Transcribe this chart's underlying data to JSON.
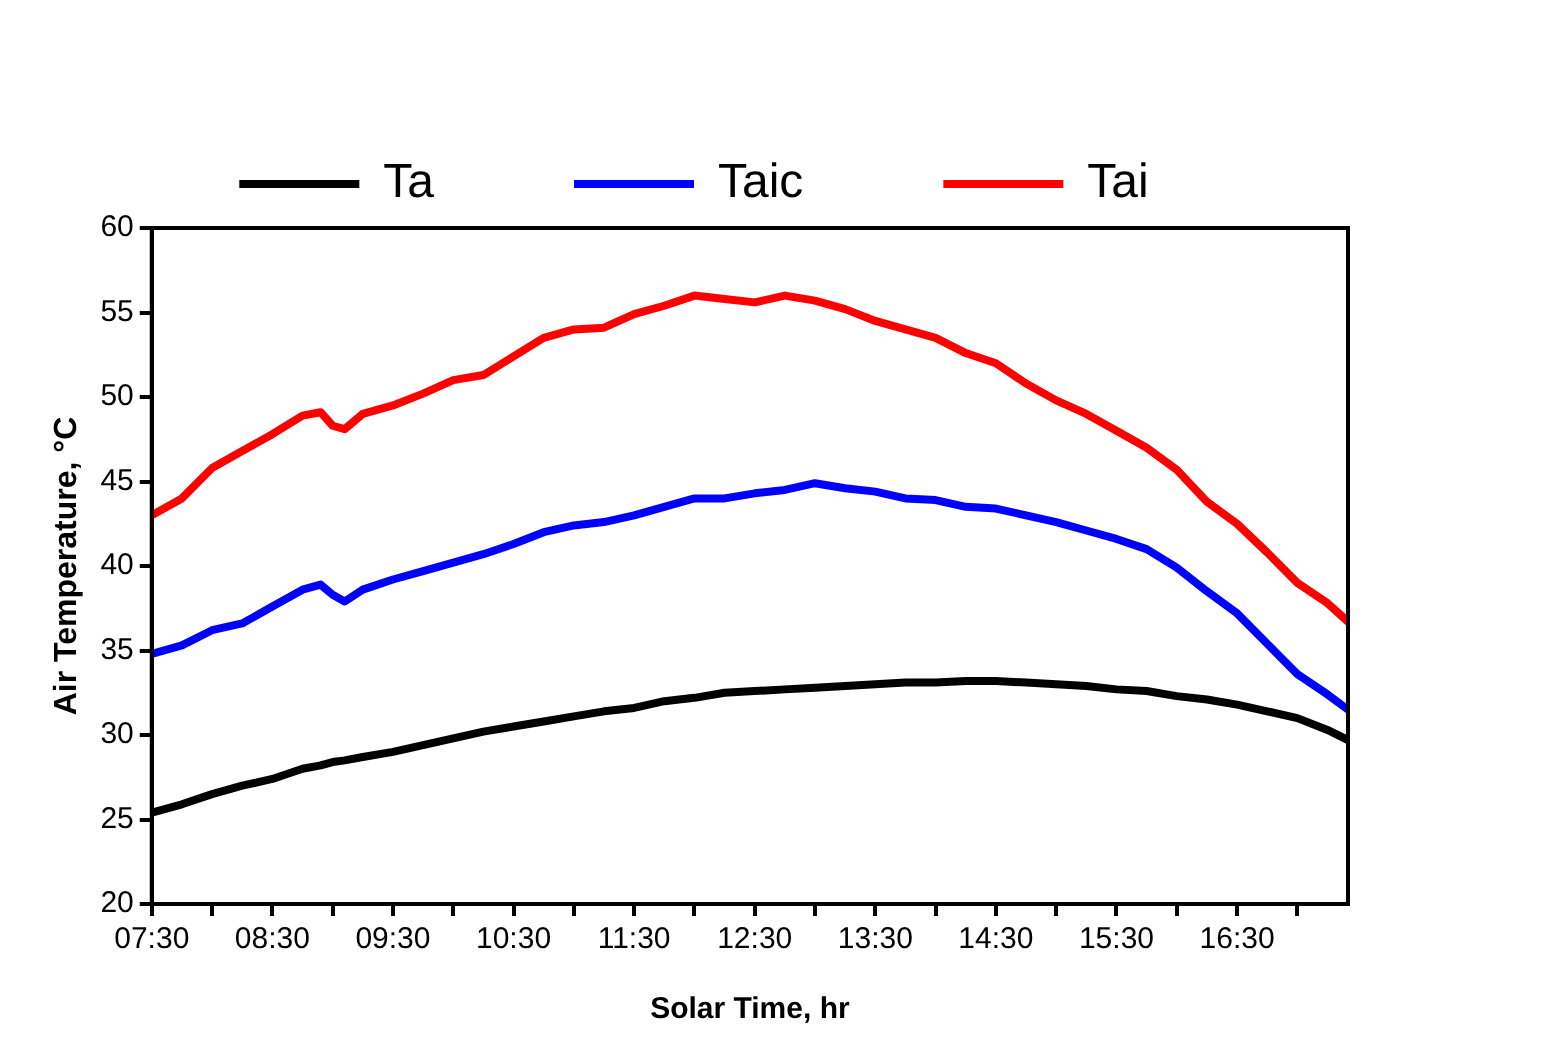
{
  "chart_data": {
    "type": "line",
    "xlabel": "Solar Time, hr",
    "ylabel": "Air Temperature, °C",
    "x": [
      7.5,
      7.75,
      8.0,
      8.25,
      8.5,
      8.75,
      8.9,
      9.0,
      9.1,
      9.25,
      9.5,
      9.75,
      10.0,
      10.25,
      10.5,
      10.75,
      11.0,
      11.25,
      11.5,
      11.75,
      12.0,
      12.25,
      12.5,
      12.75,
      13.0,
      13.25,
      13.5,
      13.75,
      14.0,
      14.25,
      14.5,
      14.75,
      15.0,
      15.25,
      15.5,
      15.75,
      16.0,
      16.25,
      16.5,
      16.75,
      17.0,
      17.25,
      17.42
    ],
    "series": [
      {
        "name": "Ta",
        "color": "#000000",
        "values": [
          25.4,
          25.9,
          26.5,
          27.0,
          27.4,
          28.0,
          28.2,
          28.4,
          28.5,
          28.7,
          29.0,
          29.4,
          29.8,
          30.2,
          30.5,
          30.8,
          31.1,
          31.4,
          31.6,
          32.0,
          32.2,
          32.5,
          32.6,
          32.7,
          32.8,
          32.9,
          33.0,
          33.1,
          33.1,
          33.2,
          33.2,
          33.1,
          33.0,
          32.9,
          32.7,
          32.6,
          32.3,
          32.1,
          31.8,
          31.4,
          31.0,
          30.3,
          29.7
        ]
      },
      {
        "name": "Taic",
        "color": "#0000ff",
        "values": [
          34.8,
          35.3,
          36.2,
          36.6,
          37.6,
          38.6,
          38.9,
          38.3,
          37.9,
          38.6,
          39.2,
          39.7,
          40.2,
          40.7,
          41.3,
          42.0,
          42.4,
          42.6,
          43.0,
          43.5,
          44.0,
          44.0,
          44.3,
          44.5,
          44.9,
          44.6,
          44.4,
          44.0,
          43.9,
          43.5,
          43.4,
          43.0,
          42.6,
          42.1,
          41.6,
          41.0,
          39.9,
          38.5,
          37.2,
          35.4,
          33.6,
          32.4,
          31.5
        ]
      },
      {
        "name": "Tai",
        "color": "#ff0000",
        "values": [
          43.0,
          44.0,
          45.8,
          46.8,
          47.8,
          48.9,
          49.1,
          48.3,
          48.1,
          49.0,
          49.5,
          50.2,
          51.0,
          51.3,
          52.4,
          53.5,
          54.0,
          54.1,
          54.9,
          55.4,
          56.0,
          55.8,
          55.6,
          56.0,
          55.7,
          55.2,
          54.5,
          54.0,
          53.5,
          52.6,
          52.0,
          50.8,
          49.8,
          49.0,
          48.0,
          47.0,
          45.7,
          43.8,
          42.5,
          40.8,
          39.0,
          37.8,
          36.7
        ]
      }
    ],
    "xlim": [
      7.5,
      17.42
    ],
    "xticks": [
      {
        "value": 7.5,
        "label": "07:30"
      },
      {
        "value": 8.0,
        "label": null
      },
      {
        "value": 8.5,
        "label": "08:30"
      },
      {
        "value": 9.0,
        "label": null
      },
      {
        "value": 9.5,
        "label": "09:30"
      },
      {
        "value": 10.0,
        "label": null
      },
      {
        "value": 10.5,
        "label": "10:30"
      },
      {
        "value": 11.0,
        "label": null
      },
      {
        "value": 11.5,
        "label": "11:30"
      },
      {
        "value": 12.0,
        "label": null
      },
      {
        "value": 12.5,
        "label": "12:30"
      },
      {
        "value": 13.0,
        "label": null
      },
      {
        "value": 13.5,
        "label": "13:30"
      },
      {
        "value": 14.0,
        "label": null
      },
      {
        "value": 14.5,
        "label": "14:30"
      },
      {
        "value": 15.0,
        "label": null
      },
      {
        "value": 15.5,
        "label": "15:30"
      },
      {
        "value": 16.0,
        "label": null
      },
      {
        "value": 16.5,
        "label": "16:30"
      },
      {
        "value": 17.0,
        "label": null
      }
    ],
    "ylim": [
      20,
      60
    ],
    "yticks": [
      20,
      25,
      30,
      35,
      40,
      45,
      50,
      55,
      60
    ],
    "grid": false,
    "legend": "top",
    "marker": "none",
    "line_style": "solid"
  }
}
